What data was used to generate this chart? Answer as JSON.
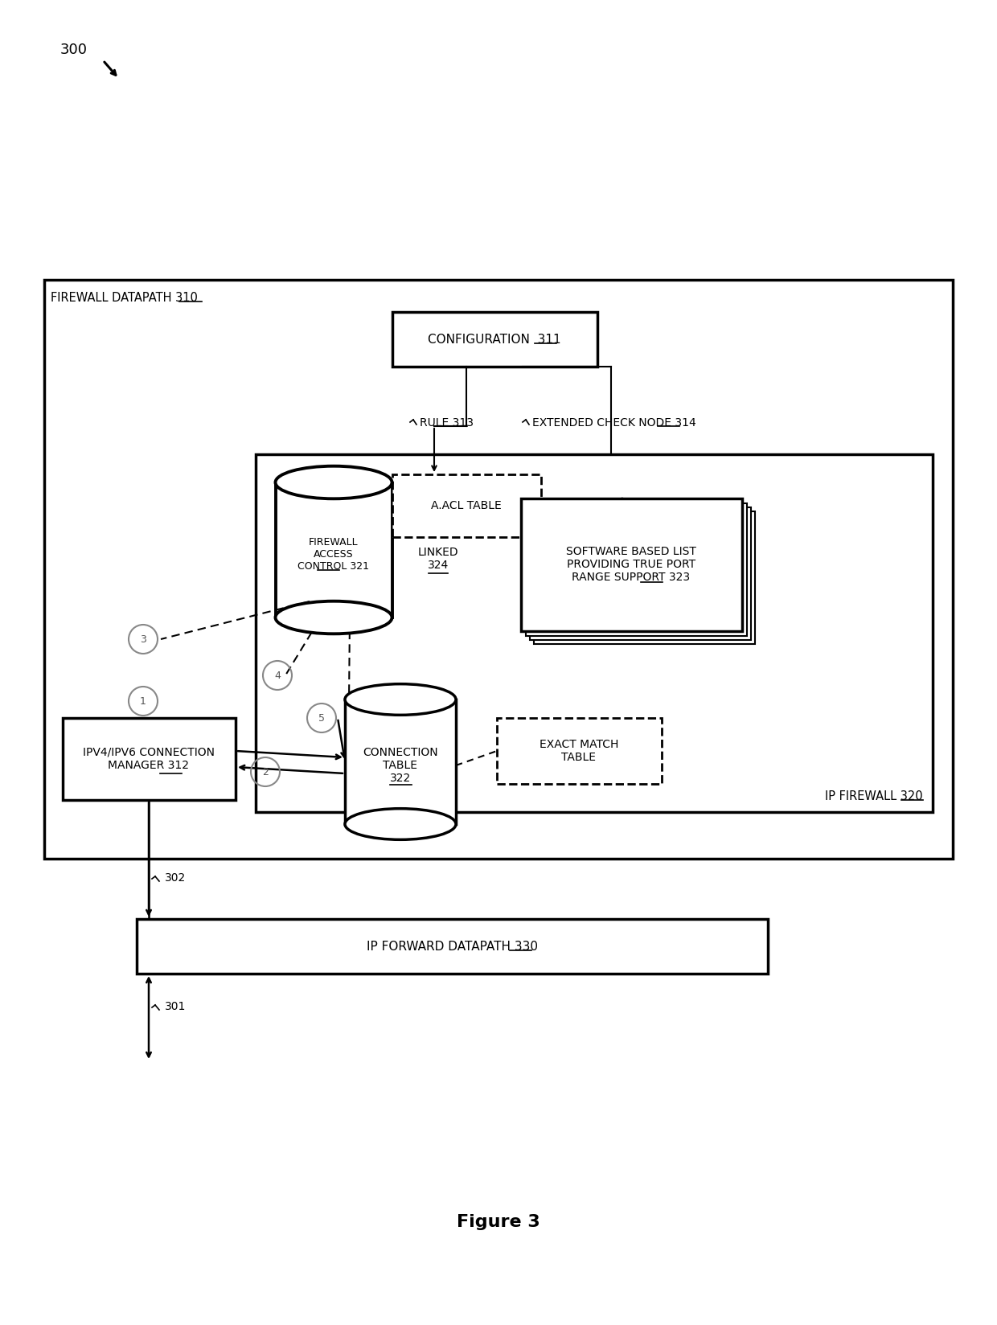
{
  "bg_color": "#ffffff",
  "fig_label": "Figure 3",
  "ref_300": "300",
  "firewall_datapath_label": "FIREWALL DATAPATH ",
  "firewall_datapath_num": "310",
  "config_label": "CONFIGURATION  ",
  "config_num": "311",
  "rule_label": "RULE ",
  "rule_num": "313",
  "ext_check_label": "EXTENDED CHECK NODE ",
  "ext_check_num": "314",
  "firewall_access_label": "FIREWALL\nACCESS\nCONTROL ",
  "firewall_access_num": "321",
  "acl_table_label": "A.ACL TABLE",
  "linked_label": "LINKED\n",
  "linked_num": "324",
  "software_list_label": "SOFTWARE BASED LIST\nPROVIDING TRUE PORT\nRANGE SUPPORT ",
  "software_list_num": "323",
  "ipv4_label": "IPV4/IPV6 CONNECTION\nMANAGER ",
  "ipv4_num": "312",
  "connection_table_label": "CONNECTION\nTABLE\n",
  "connection_table_num": "322",
  "exact_match_label": "EXACT MATCH\nTABLE",
  "ip_firewall_label": "IP FIREWALL ",
  "ip_firewall_num": "320",
  "ip_forward_label": "IP FORWARD DATAPATH ",
  "ip_forward_num": "330",
  "ref_302": "302",
  "ref_301": "301"
}
